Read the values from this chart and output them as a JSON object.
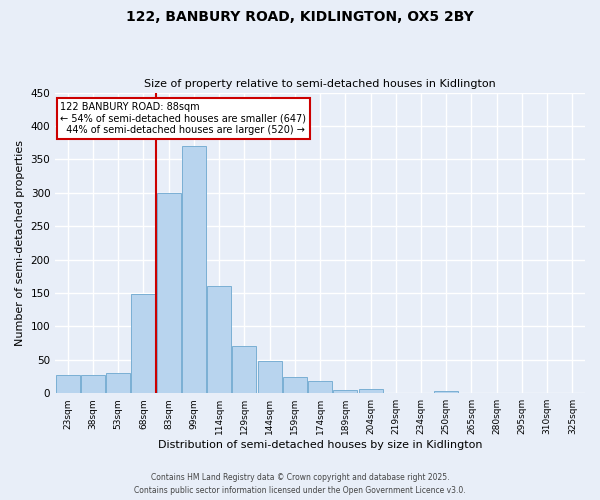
{
  "title": "122, BANBURY ROAD, KIDLINGTON, OX5 2BY",
  "subtitle": "Size of property relative to semi-detached houses in Kidlington",
  "xlabel": "Distribution of semi-detached houses by size in Kidlington",
  "ylabel": "Number of semi-detached properties",
  "bin_labels": [
    "23sqm",
    "38sqm",
    "53sqm",
    "68sqm",
    "83sqm",
    "99sqm",
    "114sqm",
    "129sqm",
    "144sqm",
    "159sqm",
    "174sqm",
    "189sqm",
    "204sqm",
    "219sqm",
    "234sqm",
    "250sqm",
    "265sqm",
    "280sqm",
    "295sqm",
    "310sqm",
    "325sqm"
  ],
  "bar_values": [
    28,
    28,
    30,
    148,
    300,
    370,
    160,
    70,
    48,
    25,
    18,
    5,
    7,
    0,
    0,
    3,
    0,
    0,
    0,
    0,
    0
  ],
  "bar_color": "#b8d4ee",
  "bar_edgecolor": "#7aafd4",
  "property_line_x": 4,
  "property_size": "88sqm",
  "pct_smaller": 54,
  "count_smaller": 647,
  "pct_larger": 44,
  "count_larger": 520,
  "line_color": "#cc0000",
  "box_color": "#cc0000",
  "ylim": [
    0,
    450
  ],
  "yticks": [
    0,
    50,
    100,
    150,
    200,
    250,
    300,
    350,
    400,
    450
  ],
  "background_color": "#e8eef8",
  "footer1": "Contains HM Land Registry data © Crown copyright and database right 2025.",
  "footer2": "Contains public sector information licensed under the Open Government Licence v3.0."
}
